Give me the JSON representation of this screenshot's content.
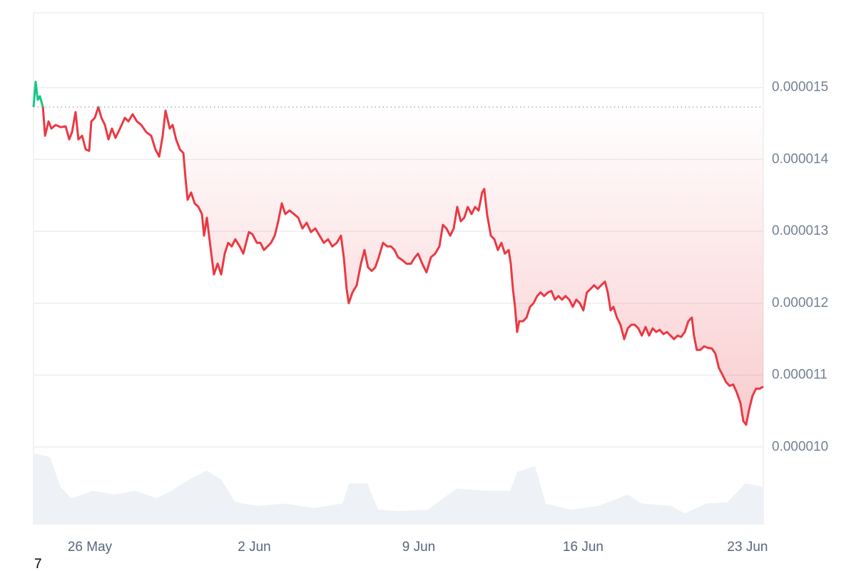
{
  "chart_data": {
    "type": "line",
    "x": [
      -2.4,
      -2.31,
      -2.22,
      -2.13,
      -2.0,
      -1.91,
      -1.76,
      -1.64,
      -1.46,
      -1.25,
      -1.03,
      -0.88,
      -0.76,
      -0.61,
      -0.49,
      -0.33,
      -0.18,
      -0.03,
      0.06,
      0.21,
      0.36,
      0.49,
      0.64,
      0.79,
      0.94,
      1.09,
      1.28,
      1.49,
      1.64,
      1.82,
      2.0,
      2.19,
      2.4,
      2.61,
      2.79,
      2.95,
      3.1,
      3.22,
      3.4,
      3.52,
      3.67,
      3.83,
      3.98,
      4.07,
      4.16,
      4.31,
      4.46,
      4.62,
      4.77,
      4.86,
      4.98,
      5.13,
      5.28,
      5.44,
      5.59,
      5.74,
      5.89,
      6.04,
      6.19,
      6.38,
      6.53,
      6.65,
      6.77,
      6.92,
      7.11,
      7.26,
      7.41,
      7.56,
      7.71,
      7.87,
      8.02,
      8.17,
      8.32,
      8.5,
      8.69,
      8.87,
      9.05,
      9.23,
      9.41,
      9.6,
      9.78,
      9.96,
      10.14,
      10.32,
      10.51,
      10.69,
      10.81,
      10.93,
      11.02,
      11.18,
      11.36,
      11.54,
      11.69,
      11.84,
      12.0,
      12.15,
      12.3,
      12.48,
      12.66,
      12.82,
      12.97,
      13.12,
      13.3,
      13.48,
      13.67,
      13.82,
      13.97,
      14.15,
      14.33,
      14.52,
      14.7,
      14.88,
      15.03,
      15.18,
      15.34,
      15.49,
      15.64,
      15.79,
      15.94,
      16.09,
      16.25,
      16.4,
      16.55,
      16.7,
      16.79,
      16.91,
      17.07,
      17.22,
      17.37,
      17.52,
      17.67,
      17.83,
      17.92,
      18.01,
      18.1,
      18.19,
      18.28,
      18.44,
      18.59,
      18.74,
      18.89,
      19.04,
      19.19,
      19.34,
      19.5,
      19.65,
      19.8,
      19.95,
      20.1,
      20.25,
      20.41,
      20.56,
      20.71,
      20.86,
      21.01,
      21.16,
      21.32,
      21.47,
      21.62,
      21.77,
      21.93,
      22.05,
      22.17,
      22.29,
      22.44,
      22.59,
      22.75,
      22.9,
      23.05,
      23.2,
      23.35,
      23.5,
      23.66,
      23.81,
      23.96,
      24.11,
      24.26,
      24.42,
      24.57,
      24.72,
      24.87,
      25.02,
      25.17,
      25.33,
      25.48,
      25.63,
      25.72,
      25.84,
      25.99,
      26.15,
      26.3,
      26.48,
      26.63,
      26.78,
      26.94,
      27.09,
      27.24,
      27.39,
      27.54,
      27.7,
      27.82,
      27.94,
      28.06,
      28.21,
      28.36,
      28.51,
      28.67
    ],
    "series": [
      {
        "color": "#ea3943",
        "values": [
          1.473e-05,
          1.508e-05,
          1.483e-05,
          1.488e-05,
          1.473e-05,
          1.433e-05,
          1.453e-05,
          1.443e-05,
          1.448e-05,
          1.445e-05,
          1.446e-05,
          1.428e-05,
          1.438e-05,
          1.466e-05,
          1.428e-05,
          1.433e-05,
          1.414e-05,
          1.412e-05,
          1.453e-05,
          1.458e-05,
          1.473e-05,
          1.458e-05,
          1.448e-05,
          1.428e-05,
          1.443e-05,
          1.43e-05,
          1.443e-05,
          1.458e-05,
          1.453e-05,
          1.463e-05,
          1.453e-05,
          1.448e-05,
          1.438e-05,
          1.433e-05,
          1.414e-05,
          1.404e-05,
          1.433e-05,
          1.468e-05,
          1.443e-05,
          1.448e-05,
          1.428e-05,
          1.414e-05,
          1.409e-05,
          1.374e-05,
          1.344e-05,
          1.354e-05,
          1.339e-05,
          1.334e-05,
          1.324e-05,
          1.294e-05,
          1.319e-05,
          1.279e-05,
          1.24e-05,
          1.255e-05,
          1.24e-05,
          1.269e-05,
          1.284e-05,
          1.279e-05,
          1.289e-05,
          1.279e-05,
          1.269e-05,
          1.284e-05,
          1.299e-05,
          1.296e-05,
          1.284e-05,
          1.284e-05,
          1.274e-05,
          1.279e-05,
          1.284e-05,
          1.294e-05,
          1.314e-05,
          1.339e-05,
          1.324e-05,
          1.329e-05,
          1.324e-05,
          1.319e-05,
          1.304e-05,
          1.312e-05,
          1.299e-05,
          1.304e-05,
          1.294e-05,
          1.284e-05,
          1.289e-05,
          1.279e-05,
          1.284e-05,
          1.294e-05,
          1.264e-05,
          1.22e-05,
          1.2e-05,
          1.215e-05,
          1.225e-05,
          1.255e-05,
          1.274e-05,
          1.25e-05,
          1.245e-05,
          1.25e-05,
          1.264e-05,
          1.284e-05,
          1.279e-05,
          1.279e-05,
          1.274e-05,
          1.264e-05,
          1.26e-05,
          1.255e-05,
          1.255e-05,
          1.263e-05,
          1.269e-05,
          1.255e-05,
          1.243e-05,
          1.264e-05,
          1.269e-05,
          1.279e-05,
          1.309e-05,
          1.304e-05,
          1.294e-05,
          1.304e-05,
          1.334e-05,
          1.314e-05,
          1.319e-05,
          1.334e-05,
          1.324e-05,
          1.334e-05,
          1.329e-05,
          1.354e-05,
          1.359e-05,
          1.324e-05,
          1.294e-05,
          1.289e-05,
          1.274e-05,
          1.284e-05,
          1.269e-05,
          1.274e-05,
          1.255e-05,
          1.22e-05,
          1.195e-05,
          1.16e-05,
          1.175e-05,
          1.175e-05,
          1.18e-05,
          1.195e-05,
          1.2e-05,
          1.21e-05,
          1.215e-05,
          1.21e-05,
          1.215e-05,
          1.217e-05,
          1.205e-05,
          1.21e-05,
          1.205e-05,
          1.21e-05,
          1.205e-05,
          1.195e-05,
          1.205e-05,
          1.2e-05,
          1.19e-05,
          1.215e-05,
          1.22e-05,
          1.225e-05,
          1.22e-05,
          1.225e-05,
          1.23e-05,
          1.215e-05,
          1.19e-05,
          1.195e-05,
          1.18e-05,
          1.17e-05,
          1.15e-05,
          1.165e-05,
          1.17e-05,
          1.17e-05,
          1.165e-05,
          1.155e-05,
          1.167e-05,
          1.155e-05,
          1.165e-05,
          1.16e-05,
          1.163e-05,
          1.157e-05,
          1.16e-05,
          1.155e-05,
          1.15e-05,
          1.155e-05,
          1.153e-05,
          1.16e-05,
          1.175e-05,
          1.18e-05,
          1.155e-05,
          1.135e-05,
          1.135e-05,
          1.14e-05,
          1.138e-05,
          1.137e-05,
          1.13e-05,
          1.11e-05,
          1.1e-05,
          1.09e-05,
          1.085e-05,
          1.087e-05,
          1.076e-05,
          1.061e-05,
          1.036e-05,
          1.031e-05,
          1.051e-05,
          1.071e-05,
          1.081e-05,
          1.081e-05,
          1.084e-05
        ]
      }
    ],
    "up_color": "#16c784",
    "reference_line": true,
    "xlim": [
      -2.4,
      28.67
    ],
    "xticks": [
      {
        "value": 0,
        "label": "26 May"
      },
      {
        "value": 7,
        "label": "2 Jun"
      },
      {
        "value": 14,
        "label": "9 Jun"
      },
      {
        "value": 21,
        "label": "16 Jun"
      },
      {
        "value": 28,
        "label": "23 Jun"
      }
    ],
    "ylim": [
      8.92e-06,
      1.604e-05
    ],
    "yticks": [
      {
        "value": 1e-05,
        "label": "0.000010"
      },
      {
        "value": 1.1e-05,
        "label": "0.000011"
      },
      {
        "value": 1.2e-05,
        "label": "0.000012"
      },
      {
        "value": 1.3e-05,
        "label": "0.000013"
      },
      {
        "value": 1.4e-05,
        "label": "0.000014"
      },
      {
        "value": 1.5e-05,
        "label": "0.000015"
      }
    ],
    "grid": true,
    "volume": {
      "color": "#eef1f5",
      "x": [
        -2.4,
        -1.7,
        -1.25,
        -0.79,
        0.12,
        1.03,
        1.94,
        2.85,
        3.46,
        4.22,
        4.98,
        5.59,
        6.19,
        7.11,
        8.32,
        9.54,
        10.75,
        11.05,
        11.81,
        12.27,
        13.18,
        14.39,
        15.61,
        16.82,
        17.89,
        18.19,
        18.95,
        19.41,
        20.47,
        21.68,
        22.9,
        23.5,
        24.72,
        25.33,
        26.24,
        27.15,
        27.91,
        28.67
      ],
      "values": [
        95,
        90,
        50,
        35,
        45,
        40,
        45,
        35,
        45,
        60,
        72,
        60,
        30,
        25,
        28,
        22,
        28,
        55,
        55,
        20,
        18,
        20,
        48,
        45,
        45,
        70,
        78,
        28,
        20,
        25,
        40,
        28,
        25,
        15,
        28,
        30,
        55,
        50
      ]
    },
    "footnote": "7"
  }
}
